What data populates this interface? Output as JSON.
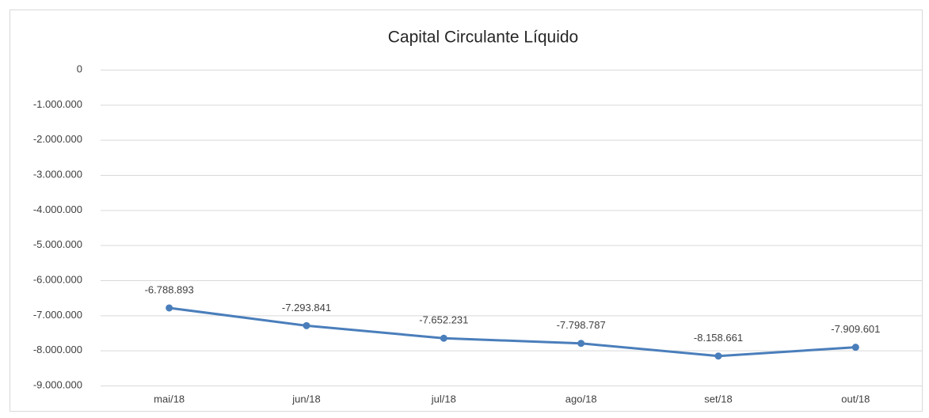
{
  "chart_data": {
    "type": "line",
    "title": "Capital Circulante Líquido",
    "categories": [
      "mai/18",
      "jun/18",
      "jul/18",
      "ago/18",
      "set/18",
      "out/18"
    ],
    "series": [
      {
        "name": "Capital Circulante Líquido",
        "color": "#4a7ebb",
        "values": [
          -6788893,
          -7293841,
          -7652231,
          -7798787,
          -8158661,
          -7909601
        ],
        "value_labels": [
          "-6.788.893",
          "-7.293.841",
          "-7.652.231",
          "-7.798.787",
          "-8.158.661",
          "-7.909.601"
        ]
      }
    ],
    "ylim": [
      -9000000,
      0
    ],
    "yticks": [
      0,
      {
        "value": -1000000,
        "label": "-1.000.000"
      },
      {
        "value": -2000000,
        "label": "-2.000.000"
      },
      {
        "value": -3000000,
        "label": "-3.000.000"
      },
      {
        "value": -4000000,
        "label": "-4.000.000"
      },
      {
        "value": -5000000,
        "label": "-5.000.000"
      },
      {
        "value": -6000000,
        "label": "-6.000.000"
      },
      {
        "value": -7000000,
        "label": "-7.000.000"
      },
      {
        "value": -8000000,
        "label": "-8.000.000"
      },
      {
        "value": -9000000,
        "label": "-9.000.000"
      }
    ],
    "grid": true
  }
}
